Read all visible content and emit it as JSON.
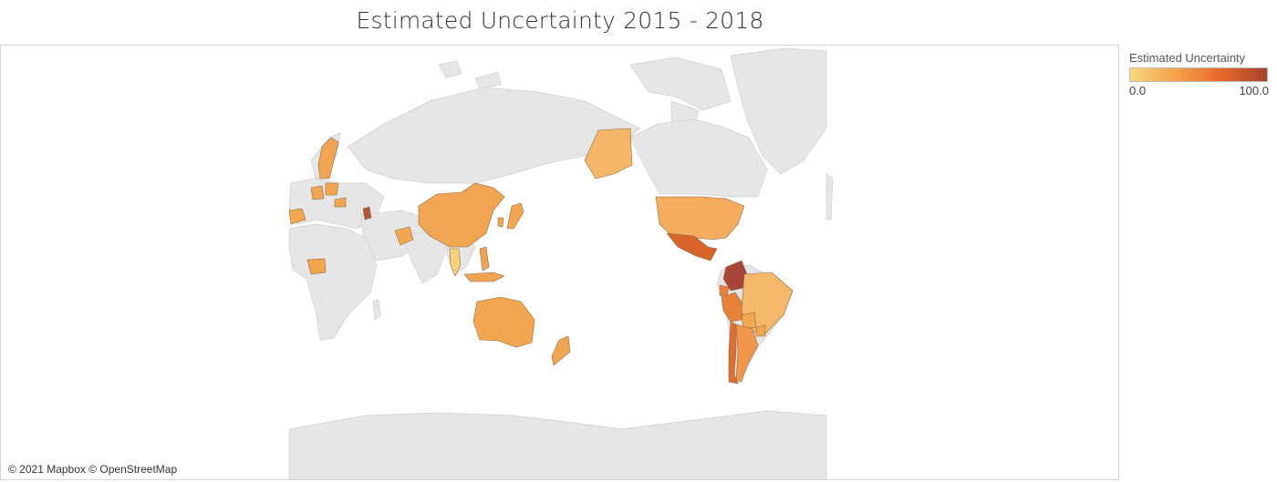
{
  "title": "Estimated Uncertainty 2015 - 2018",
  "attribution": "© 2021 Mapbox © OpenStreetMap",
  "legend": {
    "title": "Estimated Uncertainty",
    "min_label": "0.0",
    "max_label": "100.0",
    "colors": [
      "#f7d77c",
      "#f4a24c",
      "#e8692a",
      "#a4442f"
    ]
  },
  "map": {
    "land_color": "#e6e6e6",
    "border_color": "#c8c8c8",
    "countries": [
      {
        "name": "Sweden",
        "level": 0.4
      },
      {
        "name": "Spain",
        "level": 0.35
      },
      {
        "name": "Germany",
        "level": 0.4
      },
      {
        "name": "Poland",
        "level": 0.3
      },
      {
        "name": "Hungary",
        "level": 0.35
      },
      {
        "name": "Moldova",
        "level": 0.8
      },
      {
        "name": "Nigeria",
        "level": 0.3
      },
      {
        "name": "China",
        "level": 0.35
      },
      {
        "name": "Pakistan",
        "level": 0.35
      },
      {
        "name": "Thailand",
        "level": 0.25
      },
      {
        "name": "South Korea",
        "level": 0.3
      },
      {
        "name": "Japan",
        "level": 0.3
      },
      {
        "name": "Philippines",
        "level": 0.4
      },
      {
        "name": "Indonesia",
        "level": 0.35
      },
      {
        "name": "Australia",
        "level": 0.3
      },
      {
        "name": "New Zealand",
        "level": 0.35
      },
      {
        "name": "United States",
        "level": 0.3
      },
      {
        "name": "Alaska",
        "level": 0.3
      },
      {
        "name": "Mexico",
        "level": 0.65
      },
      {
        "name": "Colombia",
        "level": 0.8
      },
      {
        "name": "Ecuador",
        "level": 0.5
      },
      {
        "name": "Peru",
        "level": 0.5
      },
      {
        "name": "Brazil",
        "level": 0.25
      },
      {
        "name": "Bolivia",
        "level": 0.3
      },
      {
        "name": "Paraguay",
        "level": 0.3
      },
      {
        "name": "Chile",
        "level": 0.55
      },
      {
        "name": "Argentina",
        "level": 0.4
      }
    ]
  }
}
